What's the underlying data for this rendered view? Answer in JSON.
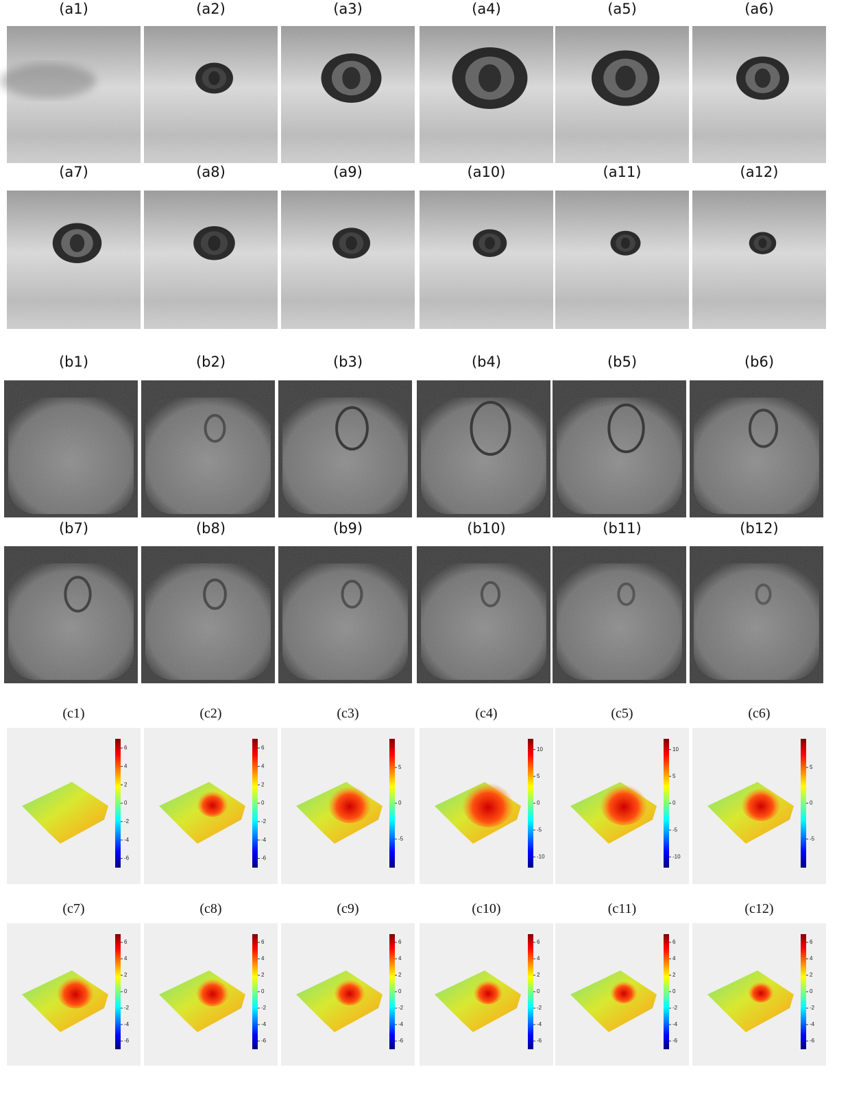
{
  "a_panels": [
    "(a1)",
    "(a2)",
    "(a3)",
    "(a4)",
    "(a5)",
    "(a6)",
    "(a7)",
    "(a8)",
    "(a9)",
    "(a10)",
    "(a11)",
    "(a12)"
  ],
  "b_panels": [
    "(b1)",
    "(b2)",
    "(b3)",
    "(b4)",
    "(b5)",
    "(b6)",
    "(b7)",
    "(b8)",
    "(b9)",
    "(b10)",
    "(b11)",
    "(b12)"
  ],
  "c_panels": [
    {
      "label": "(c1)",
      "colorbar_lim": [
        -7,
        7
      ],
      "colorbar_ticks": [
        6,
        4,
        2,
        0,
        -2,
        -4,
        -6
      ]
    },
    {
      "label": "(c2)",
      "colorbar_lim": [
        -7,
        7
      ],
      "colorbar_ticks": [
        6,
        4,
        2,
        0,
        -2,
        -4,
        -6
      ]
    },
    {
      "label": "(c3)",
      "colorbar_lim": [
        -9,
        9
      ],
      "colorbar_ticks": [
        5,
        0,
        -5
      ]
    },
    {
      "label": "(c4)",
      "colorbar_lim": [
        -12,
        12
      ],
      "colorbar_ticks": [
        10,
        5,
        0,
        -5,
        -10
      ]
    },
    {
      "label": "(c5)",
      "colorbar_lim": [
        -12,
        12
      ],
      "colorbar_ticks": [
        10,
        5,
        0,
        -5,
        -10
      ]
    },
    {
      "label": "(c6)",
      "colorbar_lim": [
        -9,
        9
      ],
      "colorbar_ticks": [
        5,
        0,
        -5
      ]
    },
    {
      "label": "(c7)",
      "colorbar_lim": [
        -7,
        7
      ],
      "colorbar_ticks": [
        6,
        4,
        2,
        0,
        -2,
        -4,
        -6
      ]
    },
    {
      "label": "(c8)",
      "colorbar_lim": [
        -7,
        7
      ],
      "colorbar_ticks": [
        6,
        4,
        2,
        0,
        -2,
        -4,
        -6
      ]
    },
    {
      "label": "(c9)",
      "colorbar_lim": [
        -7,
        7
      ],
      "colorbar_ticks": [
        6,
        4,
        2,
        0,
        -2,
        -4,
        -6
      ]
    },
    {
      "label": "(c10)",
      "colorbar_lim": [
        -7,
        7
      ],
      "colorbar_ticks": [
        6,
        4,
        2,
        0,
        -2,
        -4,
        -6
      ]
    },
    {
      "label": "(c11)",
      "colorbar_lim": [
        -7,
        7
      ],
      "colorbar_ticks": [
        6,
        4,
        2,
        0,
        -2,
        -4,
        -6
      ]
    },
    {
      "label": "(c12)",
      "colorbar_lim": [
        -7,
        7
      ],
      "colorbar_ticks": [
        6,
        4,
        2,
        0,
        -2,
        -4,
        -6
      ]
    }
  ]
}
